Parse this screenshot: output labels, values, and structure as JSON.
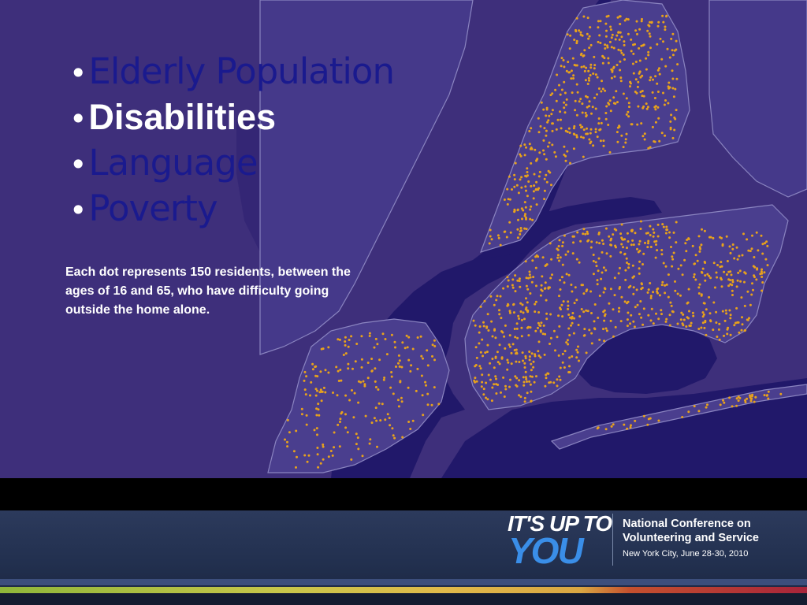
{
  "slide": {
    "bullets": [
      {
        "marker": "•",
        "label": "Elderly Population",
        "active": false
      },
      {
        "marker": "•",
        "label": "Disabilities",
        "active": true
      },
      {
        "marker": "•",
        "label": "Language",
        "active": false
      },
      {
        "marker": "•",
        "label": "Poverty",
        "active": false
      }
    ],
    "caption": "Each dot represents 150 residents, between the ages of 16 and 65, who have difficulty going outside the home alone."
  },
  "map": {
    "type": "dot-density map",
    "dot_value": 150,
    "colors": {
      "background": "#3e2f7b",
      "land": "#4a3e8e",
      "water": "#21186a",
      "borders": "#8a84c0",
      "dots": "#e8a21c"
    }
  },
  "logo": {
    "line1": "IT'S UP TO",
    "line2": "YOU",
    "conference_line1": "National Conference on",
    "conference_line2": "Volunteering and Service",
    "date_line": "New York City, June 28-30, 2010"
  },
  "colors": {
    "bullet_text": "#1a1a8e",
    "bullet_active": "#ffffff",
    "footer": "#22304f"
  }
}
